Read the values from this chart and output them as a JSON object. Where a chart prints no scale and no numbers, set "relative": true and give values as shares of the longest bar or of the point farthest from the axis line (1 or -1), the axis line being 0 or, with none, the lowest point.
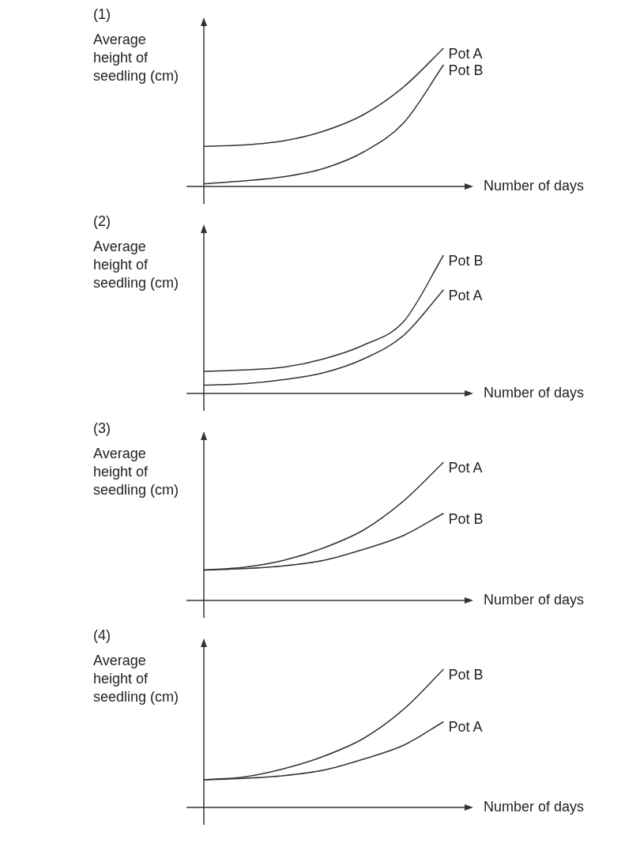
{
  "chart_data": [
    {
      "type": "line",
      "title": "(1)",
      "ylabel": "Average height of seedling (cm)",
      "xlabel": "Number of days",
      "relative": true,
      "categories": [
        null,
        null,
        null,
        null,
        null,
        null,
        null,
        null
      ],
      "series": [
        {
          "name": "Pot A",
          "color": "#333333",
          "values": [
            0.29,
            0.3,
            0.33,
            0.4,
            0.52,
            0.72,
            1,
            null
          ]
        },
        {
          "name": "Pot B",
          "color": "#333333",
          "values": [
            0.02,
            0.04,
            0.07,
            0.13,
            0.25,
            0.46,
            0.88,
            null
          ]
        }
      ],
      "legend": false,
      "grid": false,
      "marker": "none",
      "line_style": "solid",
      "tick_labels": false
    },
    {
      "type": "line",
      "title": "(2)",
      "ylabel": "Average height of seedling (cm)",
      "xlabel": "Number of days",
      "relative": true,
      "categories": [
        null,
        null,
        null,
        null,
        null,
        null,
        null,
        null
      ],
      "series": [
        {
          "name": "Pot B",
          "color": "#333333",
          "values": [
            0.16,
            0.17,
            0.19,
            0.25,
            0.35,
            0.52,
            1,
            null
          ]
        },
        {
          "name": "Pot A",
          "color": "#333333",
          "values": [
            0.06,
            0.07,
            0.1,
            0.15,
            0.25,
            0.42,
            0.75,
            null
          ]
        }
      ],
      "legend": false,
      "grid": false,
      "marker": "none",
      "line_style": "solid",
      "tick_labels": false
    },
    {
      "type": "line",
      "title": "(3)",
      "ylabel": "Average height of seedling (cm)",
      "xlabel": "Number of days",
      "relative": true,
      "categories": [
        null,
        null,
        null,
        null,
        null,
        null,
        null,
        null
      ],
      "series": [
        {
          "name": "Pot A",
          "color": "#333333",
          "values": [
            0.22,
            0.24,
            0.29,
            0.38,
            0.51,
            0.72,
            1,
            null
          ]
        },
        {
          "name": "Pot B",
          "color": "#333333",
          "values": [
            0.22,
            0.23,
            0.25,
            0.29,
            0.37,
            0.47,
            0.63,
            null
          ]
        }
      ],
      "legend": false,
      "grid": false,
      "marker": "none",
      "line_style": "solid",
      "tick_labels": false
    },
    {
      "type": "line",
      "title": "(4)",
      "ylabel": "Average height of seedling (cm)",
      "xlabel": "Number of days",
      "relative": true,
      "categories": [
        null,
        null,
        null,
        null,
        null,
        null,
        null,
        null
      ],
      "series": [
        {
          "name": "Pot B",
          "color": "#333333",
          "values": [
            0.2,
            0.22,
            0.28,
            0.37,
            0.5,
            0.71,
            1,
            null
          ]
        },
        {
          "name": "Pot A",
          "color": "#333333",
          "values": [
            0.2,
            0.21,
            0.23,
            0.27,
            0.35,
            0.45,
            0.62,
            null
          ]
        }
      ],
      "legend": false,
      "grid": false,
      "marker": "none",
      "line_style": "solid",
      "tick_labels": false
    }
  ]
}
